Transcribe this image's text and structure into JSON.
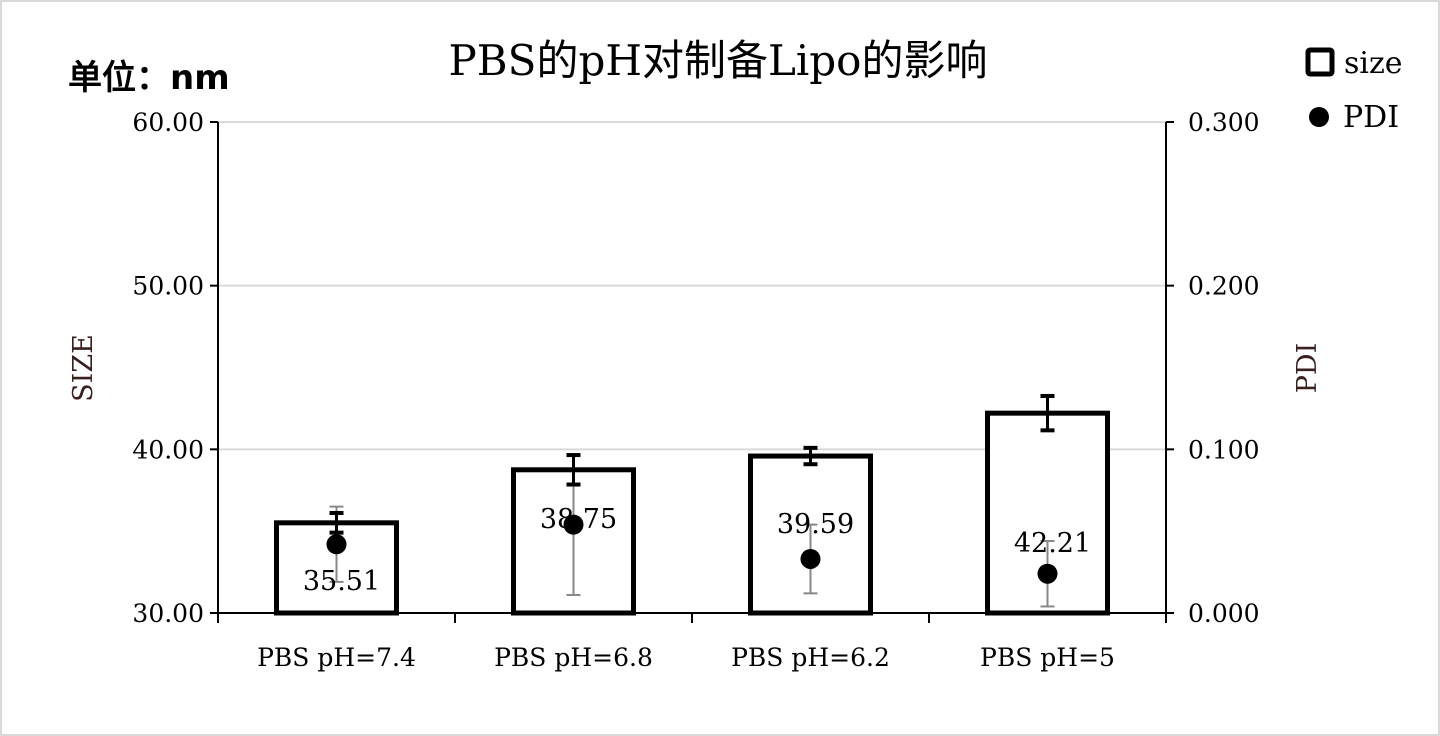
{
  "chart_data": {
    "type": "bar",
    "title": "PBS的pH对制备Lipo的影响",
    "unit_label": "单位：nm",
    "categories": [
      "PBS pH=7.4",
      "PBS pH=6.8",
      "PBS pH=6.2",
      "PBS pH=5"
    ],
    "series": [
      {
        "name": "size",
        "axis": "left",
        "mark": "bar",
        "values": [
          35.51,
          38.75,
          39.59,
          42.21
        ],
        "errors": [
          0.6,
          0.9,
          0.5,
          1.05
        ],
        "data_labels": [
          "35.51",
          "38.75",
          "39.59",
          "42.21"
        ]
      },
      {
        "name": "PDI",
        "axis": "right",
        "mark": "point",
        "values": [
          0.042,
          0.054,
          0.033,
          0.024
        ],
        "errors": [
          0.023,
          0.043,
          0.021,
          0.02
        ]
      }
    ],
    "ylabel": "SIZE",
    "ylim": [
      30,
      60
    ],
    "yticks": [
      "30.00",
      "40.00",
      "50.00",
      "60.00"
    ],
    "y2label": "PDI",
    "y2lim": [
      0,
      0.3
    ],
    "y2ticks": [
      "0.000",
      "0.100",
      "0.200",
      "0.300"
    ],
    "grid": true,
    "legend": "top-right",
    "colors": {
      "bar_stroke": "#000000",
      "point": "#000000",
      "size_error": "#000000",
      "pdi_error": "#888888",
      "grid": "#d9d9d9",
      "axis_label": "#3a1f1f"
    }
  }
}
